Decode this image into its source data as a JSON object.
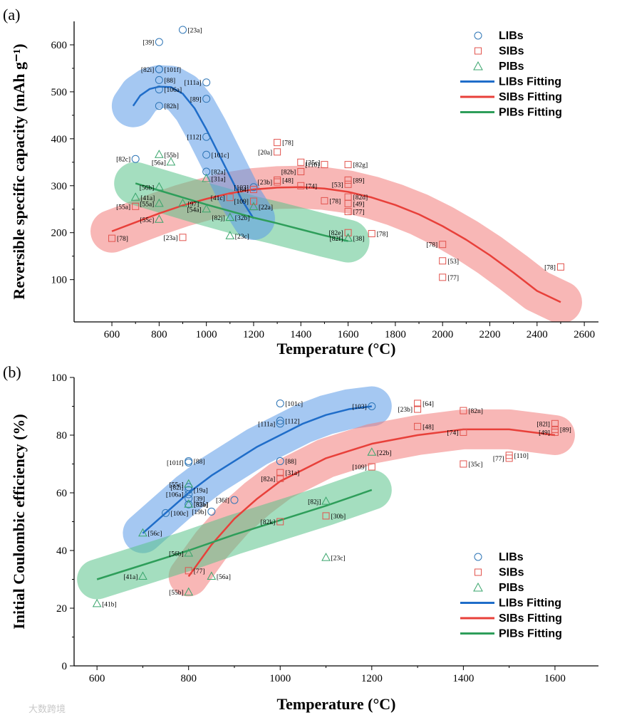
{
  "watermark": "大数跨境",
  "chart_data": [
    {
      "panel": "(a)",
      "type": "scatter",
      "xlabel": "Temperature (°C)",
      "ylabel": "Reversible specific capacity (mAh g⁻¹)",
      "xlim": [
        440,
        2660
      ],
      "ylim": [
        10,
        650
      ],
      "xticks": [
        600,
        800,
        1000,
        1200,
        1400,
        1600,
        1800,
        2000,
        2200,
        2400,
        2600
      ],
      "yticks": [
        100,
        200,
        300,
        400,
        500,
        600
      ],
      "xtick_labels": [
        "600",
        "800",
        "1000",
        "1200",
        "1400",
        "1600",
        "1800",
        "2000",
        "2200",
        "2400",
        "2600"
      ],
      "ytick_labels": [
        "100",
        "200",
        "300",
        "400",
        "500",
        "600"
      ],
      "legend": {
        "position": "top-right",
        "entries": [
          {
            "label": "LIBs",
            "marker": "circle",
            "color": "#2e75b6"
          },
          {
            "label": "SIBs",
            "marker": "square",
            "color": "#e2534d"
          },
          {
            "label": "PIBs",
            "marker": "triangle",
            "color": "#3aa56c"
          },
          {
            "label": "LIBs Fitting",
            "marker": "line",
            "color": "#1f6dc9"
          },
          {
            "label": "SIBs Fitting",
            "marker": "line",
            "color": "#e8403a"
          },
          {
            "label": "PIBs Fitting",
            "marker": "line",
            "color": "#2e9e5a"
          }
        ]
      },
      "series": [
        {
          "name": "LIBs",
          "marker": "circle",
          "color": "#2e75b6",
          "points": [
            {
              "x": 900,
              "y": 632,
              "label": "[23a]"
            },
            {
              "x": 800,
              "y": 606,
              "label": "[39]"
            },
            {
              "x": 800,
              "y": 548,
              "label": "[101f]"
            },
            {
              "x": 800,
              "y": 548,
              "label": "[82i]"
            },
            {
              "x": 800,
              "y": 525,
              "label": "[88]"
            },
            {
              "x": 1000,
              "y": 520,
              "label": "[111a]"
            },
            {
              "x": 800,
              "y": 505,
              "label": "[106a]"
            },
            {
              "x": 1000,
              "y": 485,
              "label": "[89]"
            },
            {
              "x": 800,
              "y": 470,
              "label": "[82h]"
            },
            {
              "x": 1000,
              "y": 404,
              "label": "[112]"
            },
            {
              "x": 1000,
              "y": 366,
              "label": "[101c]"
            },
            {
              "x": 700,
              "y": 357,
              "label": "[82c]"
            },
            {
              "x": 1000,
              "y": 330,
              "label": "[82a]"
            },
            {
              "x": 1200,
              "y": 297,
              "label": "[103]"
            }
          ]
        },
        {
          "name": "SIBs",
          "marker": "square",
          "color": "#e2534d",
          "points": [
            {
              "x": 1300,
              "y": 392,
              "label": "[78]"
            },
            {
              "x": 1300,
              "y": 372,
              "label": "[20a]"
            },
            {
              "x": 1400,
              "y": 350,
              "label": "[35c]"
            },
            {
              "x": 1500,
              "y": 345,
              "label": "[110]"
            },
            {
              "x": 1600,
              "y": 345,
              "label": "[82g]"
            },
            {
              "x": 1400,
              "y": 330,
              "label": "[82b]"
            },
            {
              "x": 1300,
              "y": 312,
              "label": "[48]"
            },
            {
              "x": 1300,
              "y": 308,
              "label": "[23b]"
            },
            {
              "x": 1600,
              "y": 312,
              "label": "[89]"
            },
            {
              "x": 1600,
              "y": 303,
              "label": "[53]"
            },
            {
              "x": 1400,
              "y": 300,
              "label": "[74]"
            },
            {
              "x": 1200,
              "y": 292,
              "label": "[64]"
            },
            {
              "x": 1600,
              "y": 276,
              "label": "[82d]"
            },
            {
              "x": 1100,
              "y": 275,
              "label": "[41c]"
            },
            {
              "x": 1500,
              "y": 268,
              "label": "[78]"
            },
            {
              "x": 1200,
              "y": 267,
              "label": "[109]"
            },
            {
              "x": 1600,
              "y": 262,
              "label": "[49]"
            },
            {
              "x": 700,
              "y": 256,
              "label": "[55a]"
            },
            {
              "x": 1600,
              "y": 245,
              "label": "[77]"
            },
            {
              "x": 900,
              "y": 190,
              "label": "[23a]"
            },
            {
              "x": 600,
              "y": 188,
              "label": "[78]"
            },
            {
              "x": 1600,
              "y": 200,
              "label": "[82e]"
            },
            {
              "x": 1700,
              "y": 198,
              "label": "[78]"
            },
            {
              "x": 2000,
              "y": 175,
              "label": "[78]"
            },
            {
              "x": 2000,
              "y": 140,
              "label": "[53]"
            },
            {
              "x": 2500,
              "y": 127,
              "label": "[78]"
            },
            {
              "x": 2000,
              "y": 105,
              "label": "[77]"
            }
          ]
        },
        {
          "name": "PIBs",
          "marker": "triangle",
          "color": "#3aa56c",
          "points": [
            {
              "x": 800,
              "y": 366,
              "label": "[55b]"
            },
            {
              "x": 850,
              "y": 350,
              "label": "[56a]"
            },
            {
              "x": 1000,
              "y": 315,
              "label": "[31a]"
            },
            {
              "x": 800,
              "y": 297,
              "label": "[56b]"
            },
            {
              "x": 700,
              "y": 275,
              "label": "[41a]"
            },
            {
              "x": 800,
              "y": 262,
              "label": "[55a]"
            },
            {
              "x": 900,
              "y": 262,
              "label": "[97]"
            },
            {
              "x": 1000,
              "y": 250,
              "label": "[54a]"
            },
            {
              "x": 1200,
              "y": 255,
              "label": "[22a]"
            },
            {
              "x": 800,
              "y": 228,
              "label": "[55c]"
            },
            {
              "x": 1100,
              "y": 232,
              "label": "[32b]"
            },
            {
              "x": 1100,
              "y": 232,
              "label": "[82j]"
            },
            {
              "x": 1100,
              "y": 193,
              "label": "[23c]"
            },
            {
              "x": 1600,
              "y": 188,
              "label": "[82f]"
            },
            {
              "x": 1600,
              "y": 188,
              "label": "[38]"
            }
          ]
        }
      ],
      "fits": [
        {
          "name": "LIBs Fitting",
          "color": "#1f6dc9",
          "x": [
            690,
            720,
            760,
            800,
            850,
            900,
            950,
            1000,
            1050,
            1100,
            1150,
            1200
          ],
          "y": [
            470,
            492,
            506,
            511,
            510,
            496,
            465,
            420,
            370,
            320,
            270,
            230
          ]
        },
        {
          "name": "SIBs Fitting",
          "color": "#e8403a",
          "x": [
            600,
            700,
            800,
            900,
            1000,
            1100,
            1200,
            1300,
            1400,
            1500,
            1600,
            1700,
            1800,
            1900,
            2000,
            2100,
            2200,
            2300,
            2400,
            2500
          ],
          "y": [
            203,
            222,
            241,
            258,
            272,
            284,
            292,
            296,
            297,
            294,
            287,
            275,
            259,
            239,
            214,
            185,
            152,
            115,
            76,
            52
          ]
        },
        {
          "name": "PIBs Fitting",
          "color": "#2e9e5a",
          "x": [
            700,
            800,
            900,
            1000,
            1100,
            1200,
            1300,
            1400,
            1500,
            1600
          ],
          "y": [
            305,
            290,
            275,
            260,
            246,
            232,
            220,
            207,
            194,
            182
          ]
        }
      ]
    },
    {
      "panel": "(b)",
      "type": "scatter",
      "xlabel": "Temperature (°C)",
      "ylabel": "Initial Coulombic efficiency (%)",
      "xlim": [
        550,
        1695
      ],
      "ylim": [
        0,
        100
      ],
      "xticks": [
        600,
        800,
        1000,
        1200,
        1400,
        1600
      ],
      "yticks": [
        0,
        20,
        40,
        60,
        80,
        100
      ],
      "xtick_labels": [
        "600",
        "800",
        "1000",
        "1200",
        "1400",
        "1600"
      ],
      "ytick_labels": [
        "0",
        "20",
        "40",
        "60",
        "80",
        "100"
      ],
      "legend": {
        "position": "bottom-right",
        "entries": [
          {
            "label": "LIBs",
            "marker": "circle",
            "color": "#2e75b6"
          },
          {
            "label": "SIBs",
            "marker": "square",
            "color": "#e2534d"
          },
          {
            "label": "PIBs",
            "marker": "triangle",
            "color": "#3aa56c"
          },
          {
            "label": "LIBs Fitting",
            "marker": "line",
            "color": "#1f6dc9"
          },
          {
            "label": "SIBs Fitting",
            "marker": "line",
            "color": "#e8403a"
          },
          {
            "label": "PIBs Fitting",
            "marker": "line",
            "color": "#2e9e5a"
          }
        ]
      },
      "series": [
        {
          "name": "LIBs",
          "marker": "circle",
          "color": "#2e75b6",
          "points": [
            {
              "x": 1000,
              "y": 91,
              "label": "[101c]"
            },
            {
              "x": 1200,
              "y": 90,
              "label": "[103]"
            },
            {
              "x": 1000,
              "y": 85,
              "label": "[112]"
            },
            {
              "x": 1000,
              "y": 84,
              "label": "[111a]"
            },
            {
              "x": 800,
              "y": 71,
              "label": "[88]"
            },
            {
              "x": 800,
              "y": 70.5,
              "label": "[101f]"
            },
            {
              "x": 1000,
              "y": 71,
              "label": "[88]"
            },
            {
              "x": 800,
              "y": 62,
              "label": "[82i]"
            },
            {
              "x": 800,
              "y": 61,
              "label": "[19a]"
            },
            {
              "x": 800,
              "y": 59.5,
              "label": "[106a]"
            },
            {
              "x": 800,
              "y": 58,
              "label": "[39]"
            },
            {
              "x": 900,
              "y": 57.5,
              "label": "[36f]"
            },
            {
              "x": 800,
              "y": 56,
              "label": "[82b]"
            },
            {
              "x": 850,
              "y": 53.5,
              "label": "[19b]"
            },
            {
              "x": 750,
              "y": 53,
              "label": "[100c]"
            }
          ]
        },
        {
          "name": "SIBs",
          "marker": "square",
          "color": "#e2534d",
          "points": [
            {
              "x": 1300,
              "y": 91,
              "label": "[64]"
            },
            {
              "x": 1300,
              "y": 89,
              "label": "[23b]"
            },
            {
              "x": 1400,
              "y": 88.5,
              "label": "[82n]"
            },
            {
              "x": 1600,
              "y": 84,
              "label": "[82l]"
            },
            {
              "x": 1600,
              "y": 82,
              "label": "[89]"
            },
            {
              "x": 1600,
              "y": 81,
              "label": "[49]"
            },
            {
              "x": 1300,
              "y": 83,
              "label": "[48]"
            },
            {
              "x": 1400,
              "y": 81,
              "label": "[74]"
            },
            {
              "x": 1500,
              "y": 73,
              "label": "[110]"
            },
            {
              "x": 1500,
              "y": 72,
              "label": "[77]"
            },
            {
              "x": 1400,
              "y": 70,
              "label": "[35c]"
            },
            {
              "x": 1200,
              "y": 69,
              "label": "[109]"
            },
            {
              "x": 1000,
              "y": 67,
              "label": "[31a]"
            },
            {
              "x": 1000,
              "y": 65,
              "label": "[82a]"
            },
            {
              "x": 1100,
              "y": 52,
              "label": "[30b]"
            },
            {
              "x": 1000,
              "y": 50,
              "label": "[82k]"
            },
            {
              "x": 800,
              "y": 33,
              "label": "[77]"
            }
          ]
        },
        {
          "name": "PIBs",
          "marker": "triangle",
          "color": "#3aa56c",
          "points": [
            {
              "x": 1200,
              "y": 74,
              "label": "[22b]"
            },
            {
              "x": 800,
              "y": 63,
              "label": "[55c]"
            },
            {
              "x": 800,
              "y": 56,
              "label": "[55a]"
            },
            {
              "x": 1100,
              "y": 57,
              "label": "[82j]"
            },
            {
              "x": 700,
              "y": 46,
              "label": "[56c]"
            },
            {
              "x": 800,
              "y": 39,
              "label": "[56b]"
            },
            {
              "x": 1100,
              "y": 37.5,
              "label": "[23c]"
            },
            {
              "x": 700,
              "y": 31,
              "label": "[41a]"
            },
            {
              "x": 850,
              "y": 31,
              "label": "[56a]"
            },
            {
              "x": 800,
              "y": 25.5,
              "label": "[55b]"
            },
            {
              "x": 600,
              "y": 21.5,
              "label": "[41b]"
            }
          ]
        }
      ],
      "fits": [
        {
          "name": "LIBs Fitting",
          "color": "#1f6dc9",
          "x": [
            700,
            750,
            800,
            850,
            900,
            950,
            1000,
            1050,
            1100,
            1150,
            1200
          ],
          "y": [
            46,
            53,
            60,
            66,
            71,
            76,
            80,
            84,
            87,
            89,
            90
          ]
        },
        {
          "name": "SIBs Fitting",
          "color": "#e8403a",
          "x": [
            800,
            850,
            900,
            950,
            1000,
            1100,
            1200,
            1300,
            1400,
            1500,
            1600
          ],
          "y": [
            31,
            42,
            51,
            58,
            64,
            72,
            77,
            80,
            82,
            82,
            80
          ]
        },
        {
          "name": "PIBs Fitting",
          "color": "#2e9e5a",
          "x": [
            600,
            700,
            800,
            900,
            1000,
            1100,
            1200
          ],
          "y": [
            30,
            35,
            40,
            45.5,
            50.5,
            55.5,
            61
          ]
        }
      ]
    }
  ]
}
